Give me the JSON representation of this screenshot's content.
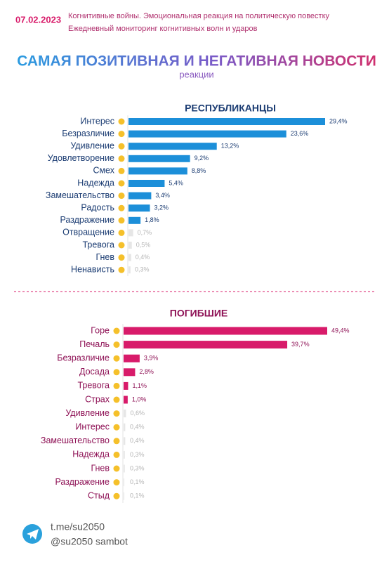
{
  "header": {
    "date": "07.02.2023",
    "line1": "Когнитивные войны. Эмоциональная реакция на политическую повестку",
    "line2": "Ежедневный мониторинг когнитивных волн и ударов"
  },
  "title": "САМАЯ ПОЗИТИВНАЯ И НЕГАТИВНАЯ НОВОСТИ",
  "subtitle": "реакции",
  "chart_data": [
    {
      "type": "bar",
      "orientation": "horizontal",
      "title": "РЕСПУБЛИКАНЦЫ",
      "color": "#1c8fd9",
      "categories": [
        "Интерес",
        "Безразличие",
        "Удивление",
        "Удовлетворение",
        "Смех",
        "Надежда",
        "Замешательство",
        "Радость",
        "Раздражение",
        "Отвращение",
        "Тревога",
        "Гнев",
        "Ненависть"
      ],
      "values": [
        29.4,
        23.6,
        13.2,
        9.2,
        8.8,
        5.4,
        3.4,
        3.2,
        1.8,
        0.7,
        0.5,
        0.4,
        0.3
      ],
      "value_labels": [
        "29,4%",
        "23,6%",
        "13,2%",
        "9,2%",
        "8,8%",
        "5,4%",
        "3,4%",
        "3,2%",
        "1,8%",
        "0,7%",
        "0,5%",
        "0,4%",
        "0,3%"
      ]
    },
    {
      "type": "bar",
      "orientation": "horizontal",
      "title": "ПОГИБШИЕ",
      "color": "#d81b6a",
      "categories": [
        "Горе",
        "Печаль",
        "Безразличие",
        "Досада",
        "Тревога",
        "Страх",
        "Удивление",
        "Интерес",
        "Замешательство",
        "Надежда",
        "Гнев",
        "Раздражение",
        "Стыд"
      ],
      "values": [
        49.4,
        39.7,
        3.9,
        2.8,
        1.1,
        1.0,
        0.6,
        0.4,
        0.4,
        0.3,
        0.3,
        0.1,
        0.1
      ],
      "value_labels": [
        "49,4%",
        "39,7%",
        "3,9%",
        "2,8%",
        "1,1%",
        "1,0%",
        "0,6%",
        "0,4%",
        "0,4%",
        "0,3%",
        "0,3%",
        "0,1%",
        "0,1%"
      ]
    }
  ],
  "footer": {
    "link": "t.me/su2050",
    "bot": "@su2050 sambot"
  }
}
